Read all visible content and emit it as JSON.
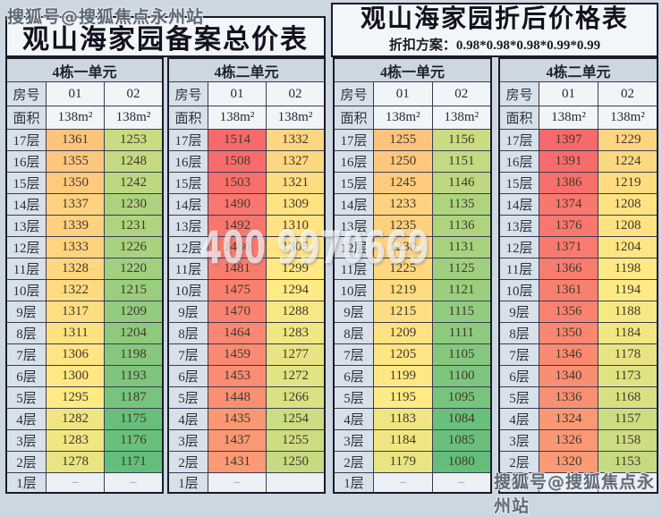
{
  "headers": {
    "left_title": "观山海家园备案总价表",
    "right_title": "观山海家园折后价格表",
    "discount_plan": "折扣方案：0.98*0.98*0.98*0.99*0.99"
  },
  "watermarks": {
    "top_left": "搜狐号@搜狐焦点永州站",
    "bottom_right": "搜狐号@搜狐焦点永州站",
    "center_phone": "400 9970669"
  },
  "colors": {
    "page_bg": "#ccd7e2",
    "border_dark": "#1a1a2a",
    "grid_line": "#3b3b52",
    "floor_label_bg": "#d8e1e9",
    "scale_red": "#F8696B",
    "scale_yellow": "#FFEB84",
    "scale_green": "#63BE7B"
  },
  "chart_data": [
    {
      "type": "heatmap",
      "sheet_title": "观山海家园备案总价表",
      "unit": "4栋一单元",
      "row_header": "房号",
      "area_header": "面积",
      "columns": [
        "01",
        "02"
      ],
      "areas": [
        "138m²",
        "138m²"
      ],
      "floors": [
        "17层",
        "16层",
        "15层",
        "14层",
        "13层",
        "12层",
        "11层",
        "10层",
        "9层",
        "8层",
        "7层",
        "6层",
        "5层",
        "4层",
        "3层",
        "2层",
        "1层"
      ],
      "values": [
        [
          1361,
          1253
        ],
        [
          1355,
          1248
        ],
        [
          1350,
          1242
        ],
        [
          1337,
          1230
        ],
        [
          1339,
          1231
        ],
        [
          1333,
          1226
        ],
        [
          1328,
          1220
        ],
        [
          1322,
          1215
        ],
        [
          1317,
          1209
        ],
        [
          1311,
          1204
        ],
        [
          1306,
          1198
        ],
        [
          1300,
          1193
        ],
        [
          1295,
          1187
        ],
        [
          1282,
          1175
        ],
        [
          1283,
          1176
        ],
        [
          1278,
          1171
        ],
        [
          "–",
          "–"
        ]
      ],
      "color_scale": {
        "min": 1171,
        "mid": 1295,
        "max": 1514,
        "min_color": "#63BE7B",
        "mid_color": "#FFEB84",
        "max_color": "#F8696B"
      }
    },
    {
      "type": "heatmap",
      "sheet_title": "观山海家园备案总价表",
      "unit": "4栋二单元",
      "row_header": "房号",
      "area_header": "面积",
      "columns": [
        "01",
        "02"
      ],
      "areas": [
        "138m²",
        "138m²"
      ],
      "floors": [
        "17层",
        "16层",
        "15层",
        "14层",
        "13层",
        "12层",
        "11层",
        "10层",
        "9层",
        "8层",
        "7层",
        "6层",
        "5层",
        "4层",
        "3层",
        "2层",
        "1层"
      ],
      "values": [
        [
          1514,
          1332
        ],
        [
          1508,
          1327
        ],
        [
          1503,
          1321
        ],
        [
          1490,
          1309
        ],
        [
          1492,
          1310
        ],
        [
          1486,
          1305
        ],
        [
          1481,
          1299
        ],
        [
          1475,
          1294
        ],
        [
          1470,
          1288
        ],
        [
          1464,
          1283
        ],
        [
          1459,
          1277
        ],
        [
          1453,
          1272
        ],
        [
          1448,
          1266
        ],
        [
          1435,
          1254
        ],
        [
          1437,
          1255
        ],
        [
          1431,
          1250
        ],
        [
          "–",
          ""
        ]
      ],
      "color_scale": {
        "min": 1171,
        "mid": 1295,
        "max": 1514,
        "min_color": "#63BE7B",
        "mid_color": "#FFEB84",
        "max_color": "#F8696B"
      }
    },
    {
      "type": "heatmap",
      "sheet_title": "观山海家园折后价格表",
      "unit": "4栋一单元",
      "row_header": "房号",
      "area_header": "面积",
      "columns": [
        "01",
        "02"
      ],
      "areas": [
        "138m²",
        "138m²"
      ],
      "floors": [
        "17层",
        "16层",
        "15层",
        "14层",
        "13层",
        "12层",
        "11层",
        "10层",
        "9层",
        "8层",
        "7层",
        "6层",
        "5层",
        "4层",
        "3层",
        "2层",
        "1层"
      ],
      "values": [
        [
          1255,
          1156
        ],
        [
          1250,
          1151
        ],
        [
          1245,
          1146
        ],
        [
          1233,
          1135
        ],
        [
          1235,
          1136
        ],
        [
          1230,
          1131
        ],
        [
          1225,
          1125
        ],
        [
          1219,
          1121
        ],
        [
          1215,
          1115
        ],
        [
          1209,
          1111
        ],
        [
          1205,
          1105
        ],
        [
          1199,
          1100
        ],
        [
          1195,
          1095
        ],
        [
          1183,
          1084
        ],
        [
          1184,
          1085
        ],
        [
          1179,
          1080
        ],
        [
          "–",
          "–"
        ]
      ],
      "color_scale": {
        "min": 1080,
        "mid": 1195,
        "max": 1397,
        "min_color": "#63BE7B",
        "mid_color": "#FFEB84",
        "max_color": "#F8696B"
      }
    },
    {
      "type": "heatmap",
      "sheet_title": "观山海家园折后价格表",
      "unit": "4栋二单元",
      "row_header": "房号",
      "area_header": "面积",
      "columns": [
        "01",
        "02"
      ],
      "areas": [
        "138m²",
        "138m²"
      ],
      "floors": [
        "17层",
        "16层",
        "15层",
        "14层",
        "13层",
        "12层",
        "11层",
        "10层",
        "9层",
        "8层",
        "7层",
        "6层",
        "5层",
        "4层",
        "3层",
        "2层",
        "1层"
      ],
      "values": [
        [
          1397,
          1229
        ],
        [
          1391,
          1224
        ],
        [
          1386,
          1219
        ],
        [
          1374,
          1208
        ],
        [
          1376,
          1208
        ],
        [
          1371,
          1204
        ],
        [
          1366,
          1198
        ],
        [
          1361,
          1194
        ],
        [
          1356,
          1188
        ],
        [
          1350,
          1184
        ],
        [
          1346,
          1178
        ],
        [
          1340,
          1173
        ],
        [
          1336,
          1168
        ],
        [
          1324,
          1157
        ],
        [
          1326,
          1158
        ],
        [
          1320,
          1153
        ],
        [
          "–",
          "–"
        ]
      ],
      "color_scale": {
        "min": 1080,
        "mid": 1195,
        "max": 1397,
        "min_color": "#63BE7B",
        "mid_color": "#FFEB84",
        "max_color": "#F8696B"
      }
    }
  ]
}
